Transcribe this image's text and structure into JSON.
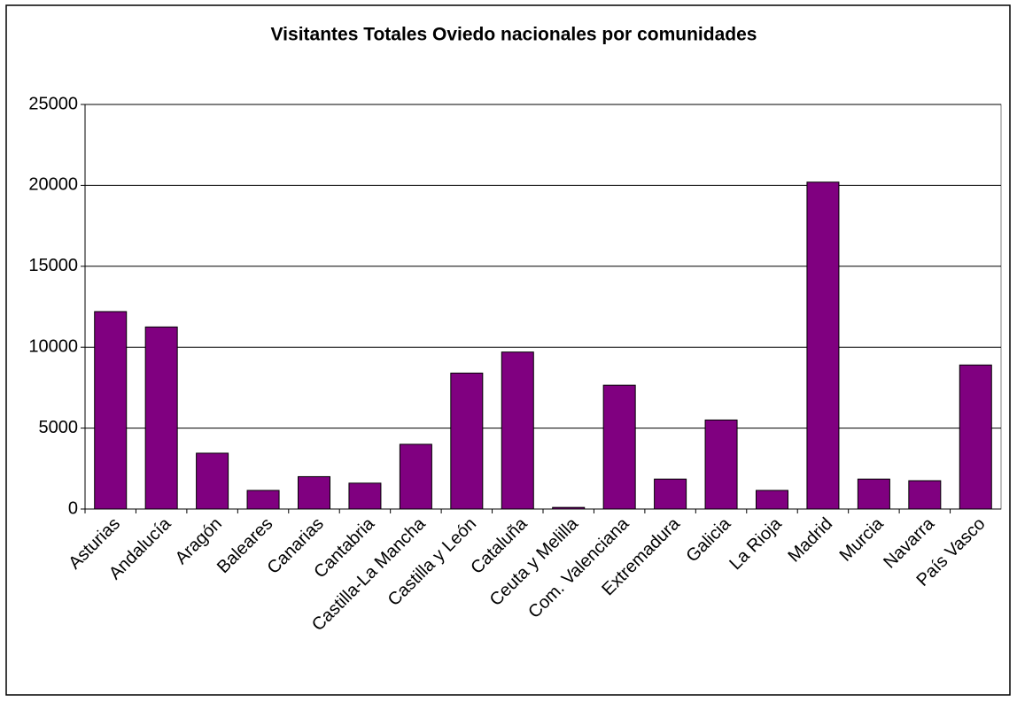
{
  "chart_data": {
    "type": "bar",
    "title": "Visitantes Totales Oviedo nacionales por comunidades",
    "categories": [
      "Asturias",
      "Andalucía",
      "Aragón",
      "Baleares",
      "Canarias",
      "Cantabria",
      "Castilla-La Mancha",
      "Castilla y León",
      "Cataluña",
      "Ceuta y Melilla",
      "Com. Valenciana",
      "Extremadura",
      "Galicia",
      "La Rioja",
      "Madrid",
      "Murcia",
      "Navarra",
      "País Vasco"
    ],
    "values": [
      12200,
      11250,
      3450,
      1150,
      2000,
      1600,
      4000,
      8400,
      9700,
      100,
      7650,
      1850,
      5500,
      1150,
      20200,
      1850,
      1750,
      8900
    ],
    "color": "#800080",
    "ylim": [
      0,
      25000
    ],
    "yticks": [
      0,
      5000,
      10000,
      15000,
      20000,
      25000
    ],
    "grid": true
  }
}
